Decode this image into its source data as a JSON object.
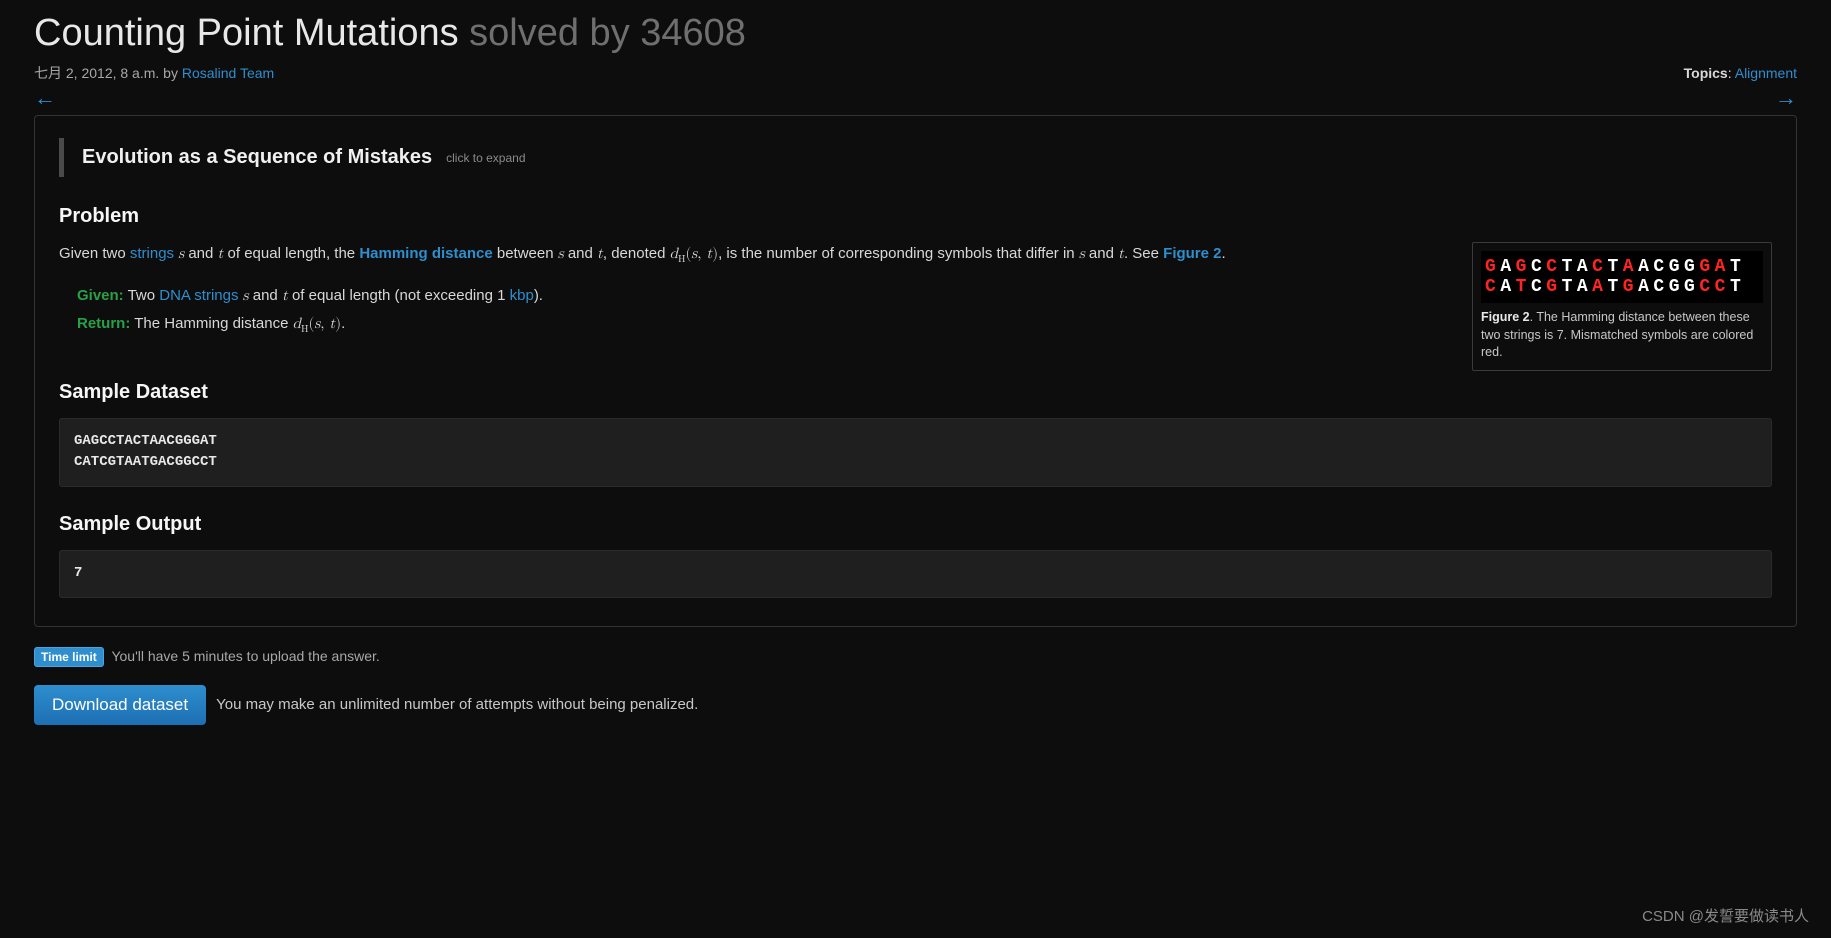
{
  "title": "Counting Point Mutations",
  "solved_by_prefix": "solved by ",
  "solved_by_count": 34608,
  "date_text": "七月 2, 2012, 8 a.m. by ",
  "author": "Rosalind Team",
  "topics_label": "Topics",
  "topics_sep": ": ",
  "topic_link": "Alignment",
  "arrow_left": "←",
  "arrow_right": "→",
  "expander_title": "Evolution as a Sequence of Mistakes",
  "expander_hint": "click to expand",
  "section_problem": "Problem",
  "body": {
    "given_two": "Given two ",
    "strings": "strings",
    "and": " and ",
    "of_equal_len": " of equal length, the ",
    "hamming": "Hamming distance",
    "between": " between ",
    "denoted": ", denoted ",
    "is_tail": ", is the number of corresponding symbols that differ in ",
    "see": ". See ",
    "fig2": "Figure 2",
    "period": "."
  },
  "gr": {
    "given_label": "Given:",
    "given_pre": " Two ",
    "dna": "DNA strings",
    "given_mid": " of equal length (not exceeding 1 ",
    "kbp": "kbp",
    "given_tail": ").",
    "return_label": "Return:",
    "return_text": " The Hamming distance "
  },
  "figure": {
    "seq_html": [
      [
        [
          "r",
          "G"
        ],
        [
          "w",
          "A"
        ],
        [
          "r",
          "G"
        ],
        [
          "w",
          "C"
        ],
        [
          "r",
          "C"
        ],
        [
          "w",
          "TA"
        ],
        [
          "r",
          "C"
        ],
        [
          "w",
          "T"
        ],
        [
          "r",
          "A"
        ],
        [
          "w",
          "ACGG"
        ],
        [
          "r",
          "GA"
        ],
        [
          "w",
          "T"
        ]
      ],
      [
        [
          "r",
          "C"
        ],
        [
          "w",
          "A"
        ],
        [
          "r",
          "T"
        ],
        [
          "w",
          "C"
        ],
        [
          "r",
          "G"
        ],
        [
          "w",
          "TA"
        ],
        [
          "r",
          "A"
        ],
        [
          "w",
          "T"
        ],
        [
          "r",
          "G"
        ],
        [
          "w",
          "ACGG"
        ],
        [
          "r",
          "CC"
        ],
        [
          "w",
          "T"
        ]
      ]
    ],
    "caption_bold": "Figure 2",
    "caption_text": ". The Hamming distance between these two strings is 7. Mismatched symbols are colored red."
  },
  "section_sample_dataset": "Sample Dataset",
  "sample_dataset": "GAGCCTACTAACGGGAT\nCATCGTAATGACGGCCT",
  "section_sample_output": "Sample Output",
  "sample_output": "7",
  "time_limit_label": "Time limit",
  "time_limit_text": "You'll have 5 minutes to upload the answer.",
  "download_btn": "Download dataset",
  "download_note": "You may make an unlimited number of attempts without being penalized.",
  "watermark": "CSDN @发誓要做读书人"
}
